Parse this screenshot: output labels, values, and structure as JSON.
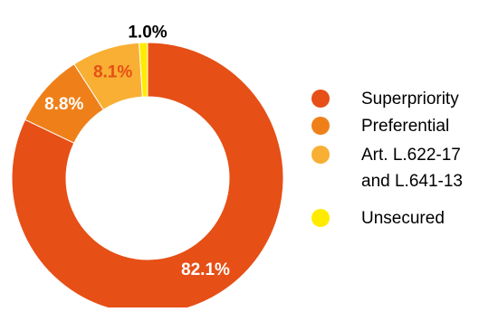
{
  "chart_data": {
    "type": "pie",
    "style": "donut",
    "title": "",
    "categories": [
      "Superpriority",
      "Preferential",
      "Art. L.622-17 and L.641-13",
      "Unsecured"
    ],
    "values": [
      82.1,
      8.8,
      8.1,
      1.0
    ],
    "value_labels": [
      "82.1%",
      "8.8%",
      "8.1%",
      "1.0%"
    ],
    "colors": [
      "#E64F16",
      "#EF8019",
      "#F8AF33",
      "#FFEB00"
    ],
    "legend": {
      "position": "right",
      "entries": [
        {
          "lines": [
            "Superpriority"
          ],
          "color": "#E64F16"
        },
        {
          "lines": [
            "Preferential"
          ],
          "color": "#EF8019"
        },
        {
          "lines": [
            "Art. L.622-17",
            "and L.641-13"
          ],
          "color": "#F8AF33"
        },
        {
          "lines": [
            "Unsecured"
          ],
          "color": "#FFEB00"
        }
      ]
    }
  }
}
